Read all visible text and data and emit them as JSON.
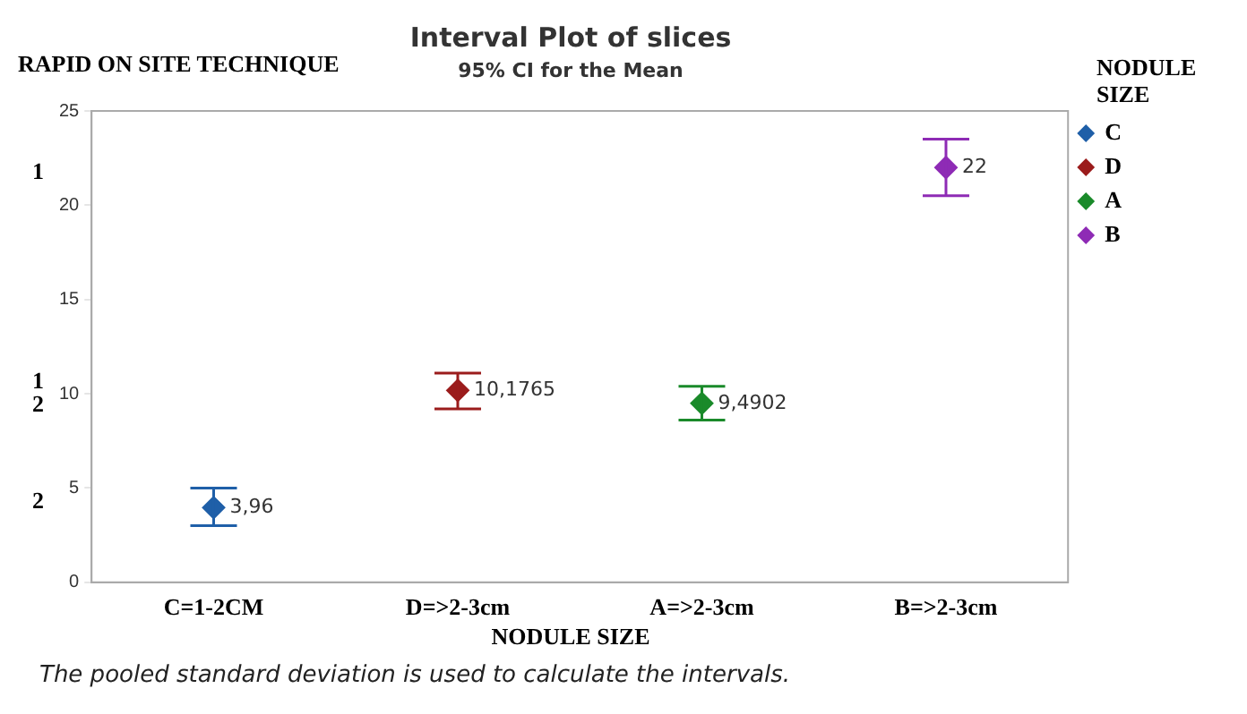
{
  "chart_data": {
    "type": "scatter",
    "title": "Interval Plot of slices",
    "subtitle": "95% CI for the Mean",
    "xlabel": "NODULE SIZE",
    "ylabel": "RAPID ON SITE TECHNIQUE",
    "legend_title": "NODULE SIZE",
    "categories": [
      "C=1-2CM",
      "D=>2-3cm",
      "A=>2-3cm",
      "B=>2-3cm"
    ],
    "series": [
      {
        "name": "C",
        "color": "#1f5fa8",
        "x": [
          "C=1-2CM"
        ],
        "values": [
          3.96
        ],
        "errors": [
          [
            3.0,
            5.0
          ]
        ],
        "value_labels": [
          "3,96"
        ]
      },
      {
        "name": "D",
        "color": "#9b1c1c",
        "x": [
          "D=>2-3cm"
        ],
        "values": [
          10.1765
        ],
        "errors": [
          [
            9.2,
            11.1
          ]
        ],
        "value_labels": [
          "10,1765"
        ]
      },
      {
        "name": "A",
        "color": "#1a8a2a",
        "x": [
          "A=>2-3cm"
        ],
        "values": [
          9.4902
        ],
        "errors": [
          [
            8.6,
            10.4
          ]
        ],
        "value_labels": [
          "9,4902"
        ]
      },
      {
        "name": "B",
        "color": "#8e2bb5",
        "x": [
          "B=>2-3cm"
        ],
        "values": [
          22
        ],
        "errors": [
          [
            20.5,
            23.5
          ]
        ],
        "value_labels": [
          "22"
        ]
      }
    ],
    "ylim": [
      0,
      25
    ],
    "yticks": [
      0,
      5,
      10,
      15,
      20,
      25
    ],
    "grid": false,
    "legend": "right",
    "marker": "diamond",
    "annotations": [
      "1",
      "1\n2",
      "2",
      "The pooled standard deviation is used to calculate the intervals."
    ]
  }
}
